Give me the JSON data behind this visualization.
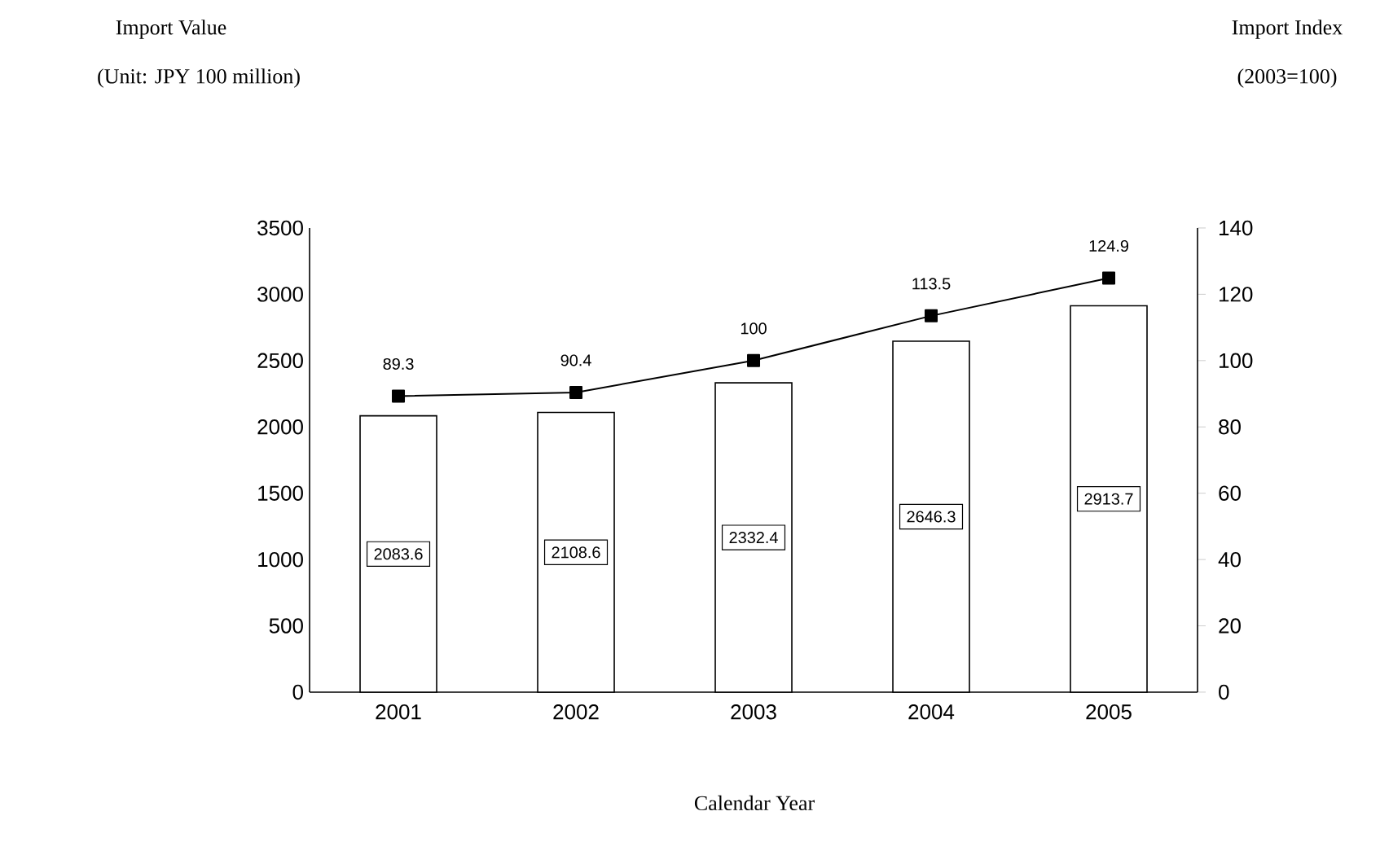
{
  "chart_data": {
    "type": "bar",
    "xlabel": "Calendar Year",
    "annotations": [
      "Import Value",
      "(Unit: JPY 100 million)",
      "Import Index",
      "(2003=100)"
    ],
    "categories": [
      "2001",
      "2002",
      "2003",
      "2004",
      "2005"
    ],
    "series": [
      {
        "color": "#ffffff",
        "values": [
          2083.6,
          2108.6,
          2332.4,
          2646.3,
          2913.7
        ]
      },
      {
        "type": "line",
        "axis": "y2",
        "color": "#000000",
        "values": [
          89.3,
          90.4,
          100,
          113.5,
          124.9
        ]
      }
    ],
    "ylim": [
      0,
      3500
    ],
    "yticks": [
      0,
      500,
      1000,
      1500,
      2000,
      2500,
      3000,
      3500
    ],
    "y2lim": [
      0,
      140
    ],
    "y2ticks": [
      0,
      20,
      40,
      60,
      80,
      100,
      120,
      140
    ],
    "data_labels": true,
    "marker": "square",
    "line_style": "solid"
  }
}
